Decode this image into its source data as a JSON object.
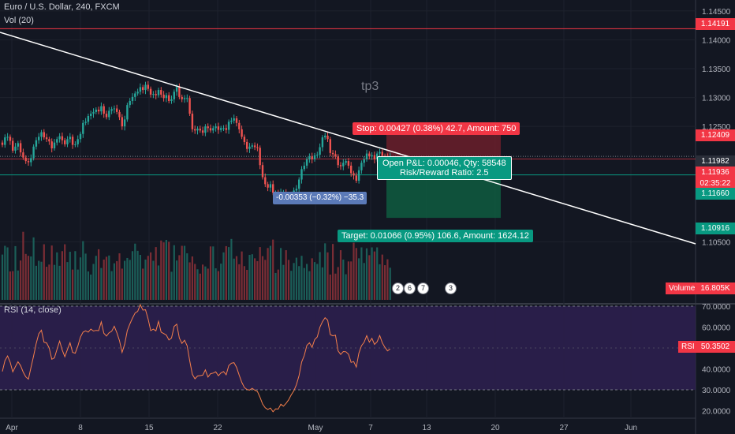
{
  "legend": {
    "symbol": "Euro / U.S. Dollar, 240, FXCM",
    "volume": "Vol (20)",
    "rsi": "RSI (14, close)"
  },
  "price_axis": {
    "ticks": [
      "1.14500",
      "1.14000",
      "1.13500",
      "1.13000",
      "1.12500",
      "1.10500"
    ]
  },
  "price_tags": {
    "high": "1.14191",
    "stop_level": "1.12409",
    "current": "1.11982",
    "mid": "1.11936",
    "countdown": "02:35:22",
    "entry": "1.11660",
    "target": "1.10916"
  },
  "volume": {
    "label": "Volume",
    "value": "16.805K"
  },
  "rsi": {
    "label": "RSI",
    "value": "50.3502",
    "ticks": [
      "70.0000",
      "60.0000",
      "50.0000",
      "40.0000",
      "30.0000",
      "20.0000"
    ]
  },
  "time_axis": {
    "labels": [
      "Apr",
      "8",
      "15",
      "22",
      "May",
      "7",
      "13",
      "20",
      "27",
      "Jun"
    ]
  },
  "position": {
    "stop": "Stop: 0.00427 (0.38%) 42.7, Amount: 750",
    "pnl": "Open P&L: 0.00046, Qty: 58548",
    "ratio": "Risk/Reward Ratio: 2.5",
    "target": "Target: 0.01066 (0.95%) 106.6, Amount: 1624.12"
  },
  "measure": "-0.00353 (−0.32%) −35.3",
  "annotations": {
    "tp3": "tp3",
    "tp": "tp"
  },
  "events": [
    "2",
    "6",
    "7",
    "3"
  ],
  "colors": {
    "up": "#26a69a",
    "down": "#ef5350",
    "background": "#131722",
    "rsi_line": "#f57f4b",
    "rsi_band": "#2a1e4a",
    "stop": "#f23645",
    "target": "#089981"
  },
  "chart_data": {
    "type": "candlestick",
    "symbol": "EURUSD",
    "interval": "240",
    "y_range": [
      1.1018,
      1.1462
    ],
    "x_range": [
      "2019-04-01",
      "2019-06-03"
    ],
    "close": [
      1.1218,
      1.1231,
      1.1232,
      1.1225,
      1.1208,
      1.1215,
      1.1221,
      1.1205,
      1.1196,
      1.119,
      1.1188,
      1.1195,
      1.1215,
      1.1226,
      1.1232,
      1.124,
      1.1231,
      1.1228,
      1.1224,
      1.1212,
      1.1222,
      1.1228,
      1.1233,
      1.1226,
      1.1219,
      1.1228,
      1.1232,
      1.1218,
      1.1219,
      1.1228,
      1.1237,
      1.1256,
      1.1258,
      1.1268,
      1.1272,
      1.1275,
      1.1279,
      1.1276,
      1.1285,
      1.1272,
      1.1266,
      1.1277,
      1.128,
      1.1281,
      1.1275,
      1.1266,
      1.125,
      1.1262,
      1.1287,
      1.1294,
      1.1301,
      1.1307,
      1.131,
      1.1318,
      1.1313,
      1.1322,
      1.1315,
      1.1305,
      1.1306,
      1.1304,
      1.1313,
      1.1305,
      1.1299,
      1.1304,
      1.1294,
      1.1297,
      1.131,
      1.1318,
      1.1301,
      1.1297,
      1.1299,
      1.1299,
      1.1272,
      1.1245,
      1.1243,
      1.1246,
      1.1243,
      1.1239,
      1.125,
      1.1247,
      1.1243,
      1.1247,
      1.125,
      1.1244,
      1.1247,
      1.1247,
      1.1244,
      1.1258,
      1.126,
      1.1264,
      1.1256,
      1.1245,
      1.1232,
      1.1223,
      1.1211,
      1.1215,
      1.1217,
      1.1214,
      1.1213,
      1.1183,
      1.1162,
      1.115,
      1.1144,
      1.115,
      1.1135,
      1.1135,
      1.1126,
      1.1136,
      1.1136,
      1.1129,
      1.1124,
      1.1133,
      1.1139,
      1.1142,
      1.1158,
      1.1176,
      1.1182,
      1.1193,
      1.1198,
      1.1193,
      1.12,
      1.1201,
      1.1214,
      1.1231,
      1.1234,
      1.1228,
      1.1204,
      1.1202,
      1.1198,
      1.1183,
      1.1181,
      1.1187,
      1.119,
      1.1182,
      1.1169,
      1.1165,
      1.1156,
      1.1174,
      1.1187,
      1.1193,
      1.1203,
      1.1198,
      1.12,
      1.1193,
      1.1203,
      1.1206,
      1.1199,
      1.1198,
      1.1194,
      1.1198
    ],
    "volume": [
      14.5,
      17.3,
      16.8,
      9.1,
      9.2,
      17.2,
      9.4,
      12.6,
      21.8,
      14.7,
      14.1,
      13.9,
      20.0,
      10.9,
      12.5,
      12.2,
      17.8,
      10.6,
      11.3,
      17.4,
      11.2,
      15.2,
      10.9,
      15.6,
      17.8,
      12.1,
      15.4,
      9.7,
      15.6,
      9.7,
      13.6,
      18.8,
      14.8,
      9.1,
      8.1,
      11.5,
      14.1,
      16.2,
      10.2,
      12.9,
      13.8,
      14.2,
      9.2,
      11.7,
      12.4,
      14.9,
      10.0,
      12.5,
      13.4,
      12.8,
      15.6,
      18.0,
      15.7,
      14.4,
      10.0,
      12.9,
      14.1,
      15.2,
      12.5,
      16.9,
      11.0,
      19.0,
      18.4,
      19.2,
      18.6,
      9.0,
      17.5,
      12.6,
      14.3,
      17.3,
      17.3,
      14.9,
      12.0,
      13.9,
      11.5,
      9.8,
      8.4,
      11.3,
      10.7,
      10.0,
      17.1,
      17.1,
      10.1,
      9.2,
      11.6,
      15.2,
      17.2,
      16.9,
      19.5,
      13.2,
      14.0,
      11.4,
      15.5,
      10.8,
      9.6,
      14.4,
      14.6,
      13.3,
      12.4,
      16.9,
      14.0,
      12.8,
      16.6,
      17.3,
      19.3,
      8.6,
      9.7,
      16.6,
      11.2,
      15.9,
      12.8,
      9.3,
      11.8,
      13.5,
      10.8,
      14.1,
      10.2,
      11.5,
      9.2,
      13.3,
      12.1,
      11.5,
      15.3,
      10.4,
      18.1,
      15.2,
      8.1,
      17.9,
      8.4,
      10.5,
      15.9,
      12.9,
      8.2,
      12.3,
      12.3,
      18.3,
      16.6,
      13.3,
      16.8,
      11.8,
      16.5,
      14.3,
      16.8,
      15.5,
      16.8,
      11.4,
      14.5,
      11.1,
      13.0,
      10.3
    ],
    "rsi": [
      38.8,
      44.0,
      46.2,
      43.2,
      38.6,
      41.1,
      43.4,
      41.6,
      38.5,
      36.2,
      35.1,
      40.7,
      46.2,
      52.2,
      56.8,
      58.5,
      52.8,
      52.4,
      50.0,
      44.6,
      45.3,
      49.4,
      53.3,
      49.0,
      45.8,
      49.3,
      52.5,
      47.9,
      47.5,
      50.9,
      55.2,
      57.6,
      58.2,
      57.6,
      59.0,
      58.1,
      58.4,
      58.3,
      62.5,
      57.0,
      55.7,
      57.3,
      58.0,
      60.4,
      57.3,
      53.5,
      47.9,
      51.8,
      58.3,
      61.5,
      64.3,
      66.7,
      67.5,
      70.7,
      68.1,
      68.3,
      63.9,
      58.3,
      59.0,
      58.2,
      62.7,
      57.6,
      56.9,
      56.2,
      53.8,
      54.8,
      60.3,
      61.4,
      54.8,
      52.2,
      53.7,
      51.1,
      43.8,
      37.4,
      35.3,
      36.6,
      36.8,
      37.0,
      39.5,
      36.1,
      37.7,
      38.0,
      38.6,
      36.7,
      38.1,
      38.7,
      37.2,
      41.6,
      42.7,
      43.0,
      40.7,
      37.0,
      33.6,
      31.1,
      30.1,
      29.9,
      30.7,
      29.8,
      29.2,
      26.4,
      23.2,
      21.4,
      20.6,
      21.3,
      19.5,
      20.9,
      20.8,
      23.1,
      22.2,
      23.5,
      25.2,
      27.6,
      29.5,
      32.5,
      36.8,
      43.3,
      46.4,
      51.2,
      52.5,
      50.3,
      54.0,
      55.3,
      59.9,
      62.6,
      64.5,
      63.3,
      56.4,
      55.8,
      56.1,
      48.6,
      46.9,
      48.3,
      48.2,
      47.0,
      43.1,
      43.5,
      40.9,
      47.6,
      51.1,
      52.7,
      55.9,
      52.8,
      54.6,
      51.7,
      53.0,
      56.0,
      52.4,
      50.3,
      48.6,
      49.6
    ]
  }
}
